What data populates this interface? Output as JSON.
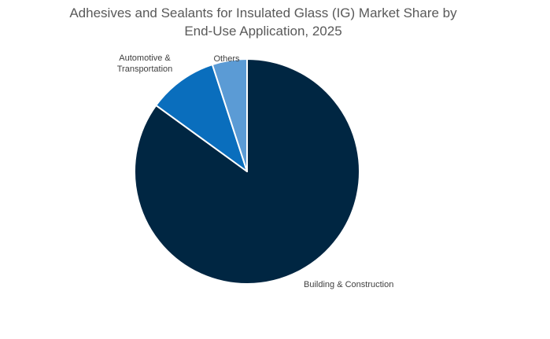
{
  "chart_data": {
    "type": "pie",
    "title_lines": [
      "Adhesives and Sealants for Insulated Glass (IG) Market Share by",
      "End-Use Application, 2025"
    ],
    "slices": [
      {
        "label": "Building & Construction",
        "label_lines": [
          "Building & Construction"
        ],
        "value": 85,
        "color": "#002642"
      },
      {
        "label": "Automotive & Transportation",
        "label_lines": [
          "Automotive &",
          "Transportation"
        ],
        "value": 10,
        "color": "#0A6EBD"
      },
      {
        "label": "Others",
        "label_lines": [
          "Others"
        ],
        "value": 5,
        "color": "#5B9BD5"
      }
    ],
    "start_angle_deg": 0,
    "direction": "clockwise",
    "legend": "none",
    "slice_border_color": "#ffffff"
  }
}
